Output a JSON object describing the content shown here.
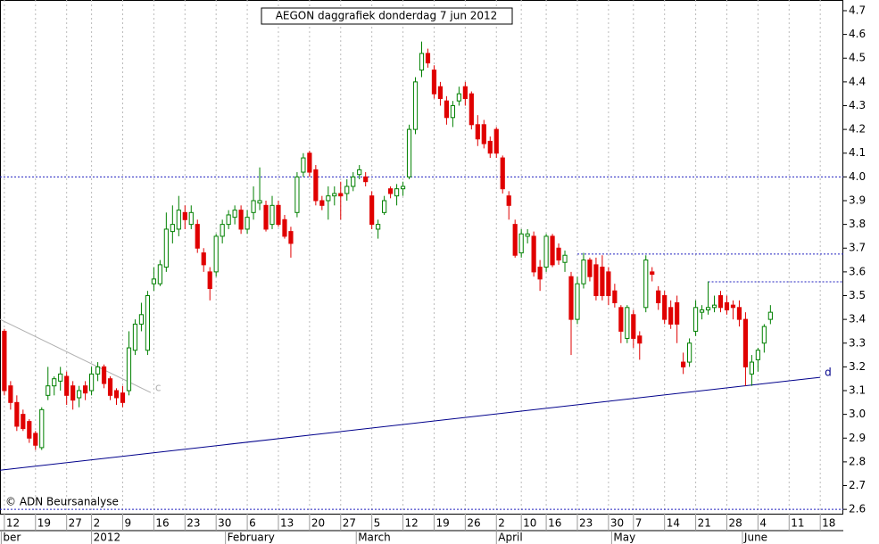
{
  "chart_data": {
    "type": "candlestick",
    "title": "AEGON daggrafiek donderdag 7 jun 2012",
    "credit": "© ADN Beursanalyse",
    "up_color": "#008000",
    "down_color": "#e00000",
    "grid": true,
    "xlim": [
      -0.7,
      134.7
    ],
    "xticks": [
      {
        "value": 0,
        "label": "12"
      },
      {
        "value": 5,
        "label": "19"
      },
      {
        "value": 10,
        "label": "27"
      },
      {
        "value": 14,
        "label": "2"
      },
      {
        "value": 19,
        "label": "9"
      },
      {
        "value": 24,
        "label": "16"
      },
      {
        "value": 29,
        "label": "23"
      },
      {
        "value": 34,
        "label": "30"
      },
      {
        "value": 39,
        "label": "6"
      },
      {
        "value": 44,
        "label": "13"
      },
      {
        "value": 49,
        "label": "20"
      },
      {
        "value": 54,
        "label": "27"
      },
      {
        "value": 59,
        "label": "5"
      },
      {
        "value": 64,
        "label": "12"
      },
      {
        "value": 69,
        "label": "19"
      },
      {
        "value": 74,
        "label": "26"
      },
      {
        "value": 79,
        "label": "2"
      },
      {
        "value": 83,
        "label": "10"
      },
      {
        "value": 87,
        "label": "16"
      },
      {
        "value": 92,
        "label": "23"
      },
      {
        "value": 97,
        "label": "30"
      },
      {
        "value": 101,
        "label": "7"
      },
      {
        "value": 106,
        "label": "14"
      },
      {
        "value": 111,
        "label": "21"
      },
      {
        "value": 116,
        "label": "28"
      },
      {
        "value": 121,
        "label": "4"
      },
      {
        "value": 126,
        "label": "11"
      },
      {
        "value": 131,
        "label": "18"
      }
    ],
    "months": [
      {
        "value": -0.5,
        "label": "ber"
      },
      {
        "value": 14,
        "label": "2012"
      },
      {
        "value": 35.5,
        "label": "February"
      },
      {
        "value": 56.5,
        "label": "March"
      },
      {
        "value": 79,
        "label": "April"
      },
      {
        "value": 97.5,
        "label": "May"
      },
      {
        "value": 118.5,
        "label": "June"
      }
    ],
    "ylim": [
      2.578,
      4.745
    ],
    "yticks": [
      2.6,
      2.7,
      2.8,
      2.9,
      {
        "value": 3,
        "label": "3.0"
      },
      3.1,
      3.2,
      3.3,
      3.4,
      3.5,
      3.6,
      3.7,
      3.8,
      3.9,
      {
        "value": 4,
        "label": "4.0"
      },
      4.1,
      4.2,
      4.3,
      4.4,
      4.5,
      4.6,
      4.7
    ],
    "levels": [
      {
        "value": 4.0,
        "from": -0.7
      },
      {
        "value": 3.675,
        "from": 92
      },
      {
        "value": 3.558,
        "from": 113
      },
      {
        "value": 2.6,
        "from": -0.7
      }
    ],
    "trendlines": [
      {
        "label": "d",
        "color": "#00008b",
        "x": [
          -0.7,
          131
        ],
        "y": [
          2.765,
          3.156
        ]
      },
      {
        "label": "c",
        "color": "#b0b0b0",
        "x": [
          -0.7,
          23.5
        ],
        "y": [
          3.4,
          3.092
        ]
      }
    ],
    "candles": [
      {
        "open": 3.35,
        "high": 3.36,
        "low": 3.08,
        "close": 3.1
      },
      {
        "open": 3.12,
        "high": 3.14,
        "low": 3.02,
        "close": 3.05
      },
      {
        "open": 3.05,
        "high": 3.08,
        "low": 2.93,
        "close": 2.95
      },
      {
        "open": 3.0,
        "high": 3.02,
        "low": 2.93,
        "close": 2.94
      },
      {
        "open": 2.97,
        "high": 2.98,
        "low": 2.88,
        "close": 2.9
      },
      {
        "open": 2.92,
        "high": 2.93,
        "low": 2.85,
        "close": 2.87
      },
      {
        "open": 2.86,
        "high": 3.03,
        "low": 2.85,
        "close": 3.02
      },
      {
        "open": 3.08,
        "high": 3.2,
        "low": 3.06,
        "close": 3.12
      },
      {
        "open": 3.12,
        "high": 3.16,
        "low": 3.08,
        "close": 3.15
      },
      {
        "open": 3.14,
        "high": 3.2,
        "low": 3.1,
        "close": 3.17
      },
      {
        "open": 3.16,
        "high": 3.18,
        "low": 3.04,
        "close": 3.08
      },
      {
        "open": 3.12,
        "high": 3.14,
        "low": 3.02,
        "close": 3.06
      },
      {
        "open": 3.07,
        "high": 3.12,
        "low": 3.03,
        "close": 3.1
      },
      {
        "open": 3.12,
        "high": 3.14,
        "low": 3.06,
        "close": 3.09
      },
      {
        "open": 3.1,
        "high": 3.2,
        "low": 3.08,
        "close": 3.17
      },
      {
        "open": 3.17,
        "high": 3.22,
        "low": 3.14,
        "close": 3.2
      },
      {
        "open": 3.2,
        "high": 3.21,
        "low": 3.11,
        "close": 3.13
      },
      {
        "open": 3.15,
        "high": 3.16,
        "low": 3.06,
        "close": 3.08
      },
      {
        "open": 3.1,
        "high": 3.11,
        "low": 3.04,
        "close": 3.07
      },
      {
        "open": 3.09,
        "high": 3.12,
        "low": 3.03,
        "close": 3.05
      },
      {
        "open": 3.1,
        "high": 3.35,
        "low": 3.08,
        "close": 3.28
      },
      {
        "open": 3.27,
        "high": 3.4,
        "low": 3.25,
        "close": 3.38
      },
      {
        "open": 3.38,
        "high": 3.47,
        "low": 3.35,
        "close": 3.42
      },
      {
        "open": 3.27,
        "high": 3.52,
        "low": 3.25,
        "close": 3.5
      },
      {
        "open": 3.55,
        "high": 3.62,
        "low": 3.52,
        "close": 3.57
      },
      {
        "open": 3.55,
        "high": 3.65,
        "low": 3.54,
        "close": 3.63
      },
      {
        "open": 3.62,
        "high": 3.85,
        "low": 3.6,
        "close": 3.78
      },
      {
        "open": 3.77,
        "high": 3.88,
        "low": 3.72,
        "close": 3.8
      },
      {
        "open": 3.78,
        "high": 3.92,
        "low": 3.75,
        "close": 3.86
      },
      {
        "open": 3.85,
        "high": 3.88,
        "low": 3.78,
        "close": 3.82
      },
      {
        "open": 3.8,
        "high": 3.88,
        "low": 3.78,
        "close": 3.85
      },
      {
        "open": 3.8,
        "high": 3.82,
        "low": 3.68,
        "close": 3.7
      },
      {
        "open": 3.68,
        "high": 3.7,
        "low": 3.6,
        "close": 3.63
      },
      {
        "open": 3.6,
        "high": 3.62,
        "low": 3.48,
        "close": 3.53
      },
      {
        "open": 3.6,
        "high": 3.76,
        "low": 3.58,
        "close": 3.75
      },
      {
        "open": 3.75,
        "high": 3.82,
        "low": 3.72,
        "close": 3.8
      },
      {
        "open": 3.8,
        "high": 3.86,
        "low": 3.78,
        "close": 3.84
      },
      {
        "open": 3.83,
        "high": 3.88,
        "low": 3.8,
        "close": 3.86
      },
      {
        "open": 3.86,
        "high": 3.88,
        "low": 3.76,
        "close": 3.78
      },
      {
        "open": 3.78,
        "high": 3.86,
        "low": 3.76,
        "close": 3.83
      },
      {
        "open": 3.85,
        "high": 3.96,
        "low": 3.82,
        "close": 3.9
      },
      {
        "open": 3.89,
        "high": 4.04,
        "low": 3.86,
        "close": 3.9
      },
      {
        "open": 3.88,
        "high": 3.9,
        "low": 3.77,
        "close": 3.78
      },
      {
        "open": 3.8,
        "high": 3.92,
        "low": 3.78,
        "close": 3.88
      },
      {
        "open": 3.88,
        "high": 3.9,
        "low": 3.79,
        "close": 3.8
      },
      {
        "open": 3.82,
        "high": 3.84,
        "low": 3.74,
        "close": 3.75
      },
      {
        "open": 3.77,
        "high": 3.79,
        "low": 3.66,
        "close": 3.72
      },
      {
        "open": 3.85,
        "high": 4.02,
        "low": 3.83,
        "close": 4.0
      },
      {
        "open": 4.02,
        "high": 4.1,
        "low": 4.0,
        "close": 4.08
      },
      {
        "open": 4.1,
        "high": 4.11,
        "low": 4.0,
        "close": 4.02
      },
      {
        "open": 4.03,
        "high": 4.05,
        "low": 3.88,
        "close": 3.9
      },
      {
        "open": 3.9,
        "high": 3.92,
        "low": 3.86,
        "close": 3.88
      },
      {
        "open": 3.9,
        "high": 3.96,
        "low": 3.82,
        "close": 3.92
      },
      {
        "open": 3.92,
        "high": 3.96,
        "low": 3.88,
        "close": 3.93
      },
      {
        "open": 3.93,
        "high": 3.98,
        "low": 3.82,
        "close": 3.92
      },
      {
        "open": 3.93,
        "high": 3.99,
        "low": 3.9,
        "close": 3.96
      },
      {
        "open": 3.96,
        "high": 4.02,
        "low": 3.94,
        "close": 4.0
      },
      {
        "open": 4.01,
        "high": 4.05,
        "low": 3.99,
        "close": 4.03
      },
      {
        "open": 4.0,
        "high": 4.02,
        "low": 3.96,
        "close": 3.98
      },
      {
        "open": 3.92,
        "high": 3.94,
        "low": 3.78,
        "close": 3.8
      },
      {
        "open": 3.78,
        "high": 3.82,
        "low": 3.74,
        "close": 3.8
      },
      {
        "open": 3.85,
        "high": 3.92,
        "low": 3.84,
        "close": 3.9
      },
      {
        "open": 3.95,
        "high": 3.96,
        "low": 3.91,
        "close": 3.93
      },
      {
        "open": 3.92,
        "high": 3.97,
        "low": 3.88,
        "close": 3.95
      },
      {
        "open": 3.95,
        "high": 3.98,
        "low": 3.92,
        "close": 3.96
      },
      {
        "open": 4.0,
        "high": 4.22,
        "low": 3.99,
        "close": 4.2
      },
      {
        "open": 4.2,
        "high": 4.42,
        "low": 4.18,
        "close": 4.4
      },
      {
        "open": 4.45,
        "high": 4.57,
        "low": 4.42,
        "close": 4.52
      },
      {
        "open": 4.52,
        "high": 4.54,
        "low": 4.46,
        "close": 4.48
      },
      {
        "open": 4.45,
        "high": 4.47,
        "low": 4.33,
        "close": 4.35
      },
      {
        "open": 4.38,
        "high": 4.4,
        "low": 4.3,
        "close": 4.33
      },
      {
        "open": 4.32,
        "high": 4.34,
        "low": 4.22,
        "close": 4.25
      },
      {
        "open": 4.25,
        "high": 4.32,
        "low": 4.21,
        "close": 4.3
      },
      {
        "open": 4.32,
        "high": 4.38,
        "low": 4.3,
        "close": 4.35
      },
      {
        "open": 4.38,
        "high": 4.4,
        "low": 4.3,
        "close": 4.33
      },
      {
        "open": 4.35,
        "high": 4.36,
        "low": 4.2,
        "close": 4.22
      },
      {
        "open": 4.22,
        "high": 4.26,
        "low": 4.13,
        "close": 4.16
      },
      {
        "open": 4.22,
        "high": 4.24,
        "low": 4.12,
        "close": 4.14
      },
      {
        "open": 4.15,
        "high": 4.17,
        "low": 4.08,
        "close": 4.1
      },
      {
        "open": 4.2,
        "high": 4.21,
        "low": 4.08,
        "close": 4.1
      },
      {
        "open": 4.08,
        "high": 4.09,
        "low": 3.93,
        "close": 3.95
      },
      {
        "open": 3.92,
        "high": 3.94,
        "low": 3.82,
        "close": 3.88
      },
      {
        "open": 3.8,
        "high": 3.82,
        "low": 3.66,
        "close": 3.67
      },
      {
        "open": 3.68,
        "high": 3.78,
        "low": 3.66,
        "close": 3.76
      },
      {
        "open": 3.75,
        "high": 3.78,
        "low": 3.72,
        "close": 3.76
      },
      {
        "open": 3.75,
        "high": 3.77,
        "low": 3.58,
        "close": 3.6
      },
      {
        "open": 3.62,
        "high": 3.65,
        "low": 3.52,
        "close": 3.57
      },
      {
        "open": 3.62,
        "high": 3.76,
        "low": 3.6,
        "close": 3.75
      },
      {
        "open": 3.75,
        "high": 3.76,
        "low": 3.62,
        "close": 3.63
      },
      {
        "open": 3.7,
        "high": 3.72,
        "low": 3.63,
        "close": 3.65
      },
      {
        "open": 3.64,
        "high": 3.69,
        "low": 3.6,
        "close": 3.67
      },
      {
        "open": 3.58,
        "high": 3.6,
        "low": 3.25,
        "close": 3.4
      },
      {
        "open": 3.4,
        "high": 3.58,
        "low": 3.38,
        "close": 3.55
      },
      {
        "open": 3.55,
        "high": 3.68,
        "low": 3.53,
        "close": 3.65
      },
      {
        "open": 3.65,
        "high": 3.66,
        "low": 3.56,
        "close": 3.58
      },
      {
        "open": 3.63,
        "high": 3.66,
        "low": 3.48,
        "close": 3.5
      },
      {
        "open": 3.62,
        "high": 3.67,
        "low": 3.48,
        "close": 3.5
      },
      {
        "open": 3.6,
        "high": 3.62,
        "low": 3.46,
        "close": 3.5
      },
      {
        "open": 3.52,
        "high": 3.55,
        "low": 3.45,
        "close": 3.47
      },
      {
        "open": 3.45,
        "high": 3.46,
        "low": 3.3,
        "close": 3.35
      },
      {
        "open": 3.32,
        "high": 3.46,
        "low": 3.3,
        "close": 3.45
      },
      {
        "open": 3.42,
        "high": 3.44,
        "low": 3.28,
        "close": 3.32
      },
      {
        "open": 3.33,
        "high": 3.35,
        "low": 3.23,
        "close": 3.3
      },
      {
        "open": 3.45,
        "high": 3.67,
        "low": 3.43,
        "close": 3.65
      },
      {
        "open": 3.6,
        "high": 3.62,
        "low": 3.56,
        "close": 3.59
      },
      {
        "open": 3.52,
        "high": 3.54,
        "low": 3.44,
        "close": 3.47
      },
      {
        "open": 3.5,
        "high": 3.52,
        "low": 3.38,
        "close": 3.4
      },
      {
        "open": 3.45,
        "high": 3.48,
        "low": 3.36,
        "close": 3.38
      },
      {
        "open": 3.47,
        "high": 3.5,
        "low": 3.3,
        "close": 3.38
      },
      {
        "open": 3.22,
        "high": 3.26,
        "low": 3.17,
        "close": 3.2
      },
      {
        "open": 3.22,
        "high": 3.32,
        "low": 3.2,
        "close": 3.3
      },
      {
        "open": 3.35,
        "high": 3.48,
        "low": 3.33,
        "close": 3.45
      },
      {
        "open": 3.43,
        "high": 3.46,
        "low": 3.4,
        "close": 3.44
      },
      {
        "open": 3.44,
        "high": 3.56,
        "low": 3.42,
        "close": 3.45
      },
      {
        "open": 3.45,
        "high": 3.5,
        "low": 3.43,
        "close": 3.46
      },
      {
        "open": 3.5,
        "high": 3.52,
        "low": 3.43,
        "close": 3.45
      },
      {
        "open": 3.47,
        "high": 3.5,
        "low": 3.42,
        "close": 3.44
      },
      {
        "open": 3.46,
        "high": 3.48,
        "low": 3.4,
        "close": 3.45
      },
      {
        "open": 3.45,
        "high": 3.48,
        "low": 3.37,
        "close": 3.4
      },
      {
        "open": 3.4,
        "high": 3.43,
        "low": 3.12,
        "close": 3.2
      },
      {
        "open": 3.17,
        "high": 3.25,
        "low": 3.12,
        "close": 3.22
      },
      {
        "open": 3.23,
        "high": 3.28,
        "low": 3.18,
        "close": 3.27
      },
      {
        "open": 3.3,
        "high": 3.38,
        "low": 3.26,
        "close": 3.37
      },
      {
        "open": 3.4,
        "high": 3.46,
        "low": 3.38,
        "close": 3.43
      }
    ]
  }
}
